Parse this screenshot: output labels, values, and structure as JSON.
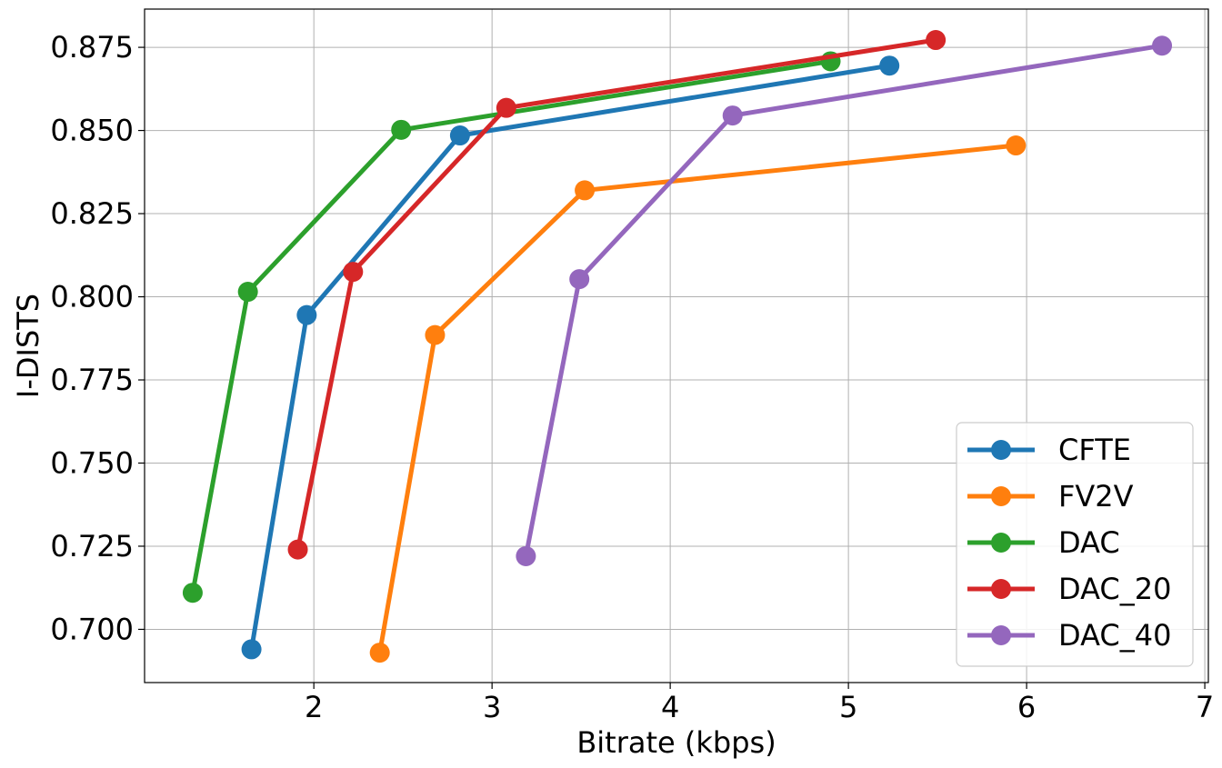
{
  "chart_data": {
    "type": "line",
    "title": "",
    "xlabel": "Bitrate (kbps)",
    "ylabel": "I-DISTS",
    "xlim": [
      1.05,
      7.02
    ],
    "ylim": [
      0.684,
      0.8865
    ],
    "xticks": [
      2,
      3,
      4,
      5,
      6,
      7
    ],
    "xtick_labels": [
      "2",
      "3",
      "4",
      "5",
      "6",
      "7"
    ],
    "yticks": [
      0.7,
      0.725,
      0.75,
      0.775,
      0.8,
      0.825,
      0.85,
      0.875
    ],
    "ytick_labels": [
      "0.700",
      "0.725",
      "0.750",
      "0.775",
      "0.800",
      "0.825",
      "0.850",
      "0.875"
    ],
    "grid": true,
    "legend_position": "lower-right",
    "series": [
      {
        "name": "CFTE",
        "color": "#1f77b4",
        "x": [
          1.65,
          1.96,
          2.82,
          5.23
        ],
        "y": [
          0.694,
          0.7945,
          0.8485,
          0.8695
        ]
      },
      {
        "name": "FV2V",
        "color": "#ff7f0e",
        "x": [
          2.37,
          2.68,
          3.52,
          5.94
        ],
        "y": [
          0.693,
          0.7885,
          0.832,
          0.8455
        ]
      },
      {
        "name": "DAC",
        "color": "#2ca02c",
        "x": [
          1.32,
          1.63,
          2.49,
          4.9
        ],
        "y": [
          0.711,
          0.8015,
          0.8502,
          0.8708
        ]
      },
      {
        "name": "DAC_20",
        "color": "#d62728",
        "x": [
          1.91,
          2.22,
          3.08,
          5.49
        ],
        "y": [
          0.724,
          0.8075,
          0.8568,
          0.8772
        ]
      },
      {
        "name": "DAC_40",
        "color": "#9467bd",
        "x": [
          3.19,
          3.49,
          4.35,
          6.76
        ],
        "y": [
          0.722,
          0.8053,
          0.8545,
          0.8755
        ]
      }
    ]
  }
}
